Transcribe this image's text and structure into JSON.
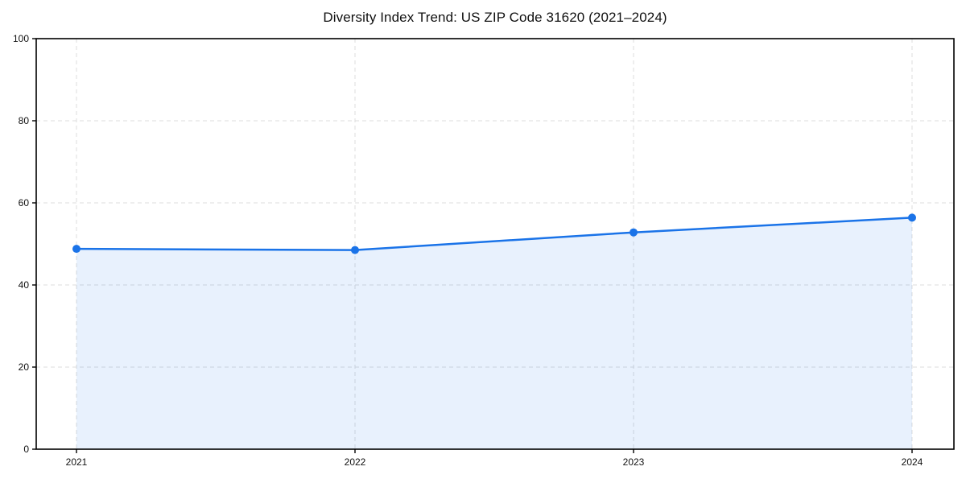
{
  "chart_data": {
    "type": "area",
    "title": "Diversity Index Trend: US ZIP Code 31620 (2021–2024)",
    "categories": [
      "2021",
      "2022",
      "2023",
      "2024"
    ],
    "series": [
      {
        "name": "Diversity Index",
        "values": [
          48.8,
          48.5,
          52.8,
          56.4
        ]
      }
    ],
    "xlabel": "",
    "ylabel": "",
    "ylim": [
      0,
      100
    ],
    "y_ticks": [
      0,
      20,
      40,
      60,
      80,
      100
    ],
    "grid": true,
    "grid_style": "dashed",
    "legend": "none",
    "colors": {
      "line": "#1a73e8",
      "marker": "#1a73e8",
      "fill": "#1a73e8",
      "fill_opacity": 0.1,
      "grid": "#dcdcdc",
      "spine": "#000000",
      "tick_label": "#111111",
      "background": "#ffffff"
    }
  }
}
